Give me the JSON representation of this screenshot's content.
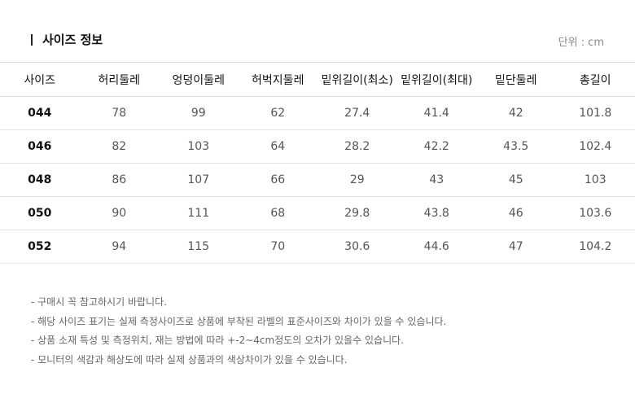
{
  "title": "사이즈 정보",
  "unit": "단위 : cm",
  "table": {
    "headers": [
      "사이즈",
      "허리둘레",
      "엉덩이둘레",
      "허벅지둘레",
      "밑위길이(최소)",
      "밑위길이(최대)",
      "밑단둘레",
      "총길이"
    ],
    "rows": [
      [
        "044",
        "78",
        "99",
        "62",
        "27.4",
        "41.4",
        "42",
        "101.8"
      ],
      [
        "046",
        "82",
        "103",
        "64",
        "28.2",
        "42.2",
        "43.5",
        "102.4"
      ],
      [
        "048",
        "86",
        "107",
        "66",
        "29",
        "43",
        "45",
        "103"
      ],
      [
        "050",
        "90",
        "111",
        "68",
        "29.8",
        "43.8",
        "46",
        "103.6"
      ],
      [
        "052",
        "94",
        "115",
        "70",
        "30.6",
        "44.6",
        "47",
        "104.2"
      ]
    ]
  },
  "notes": [
    "- 구매시 꼭 참고하시기 바랍니다.",
    "- 해당 사이즈 표기는 실제 측정사이즈로 상품에 부착된 라벨의 표준사이즈와 차이가 있을 수 있습니다.",
    "- 상품 소재 특성 및 측정위치, 재는 방법에 따라 +-2~4cm정도의 오차가 있을수 있습니다.",
    "- 모니터의 색감과 해상도에 따라 실제 상품과의 색상차이가 있을 수 있습니다."
  ]
}
